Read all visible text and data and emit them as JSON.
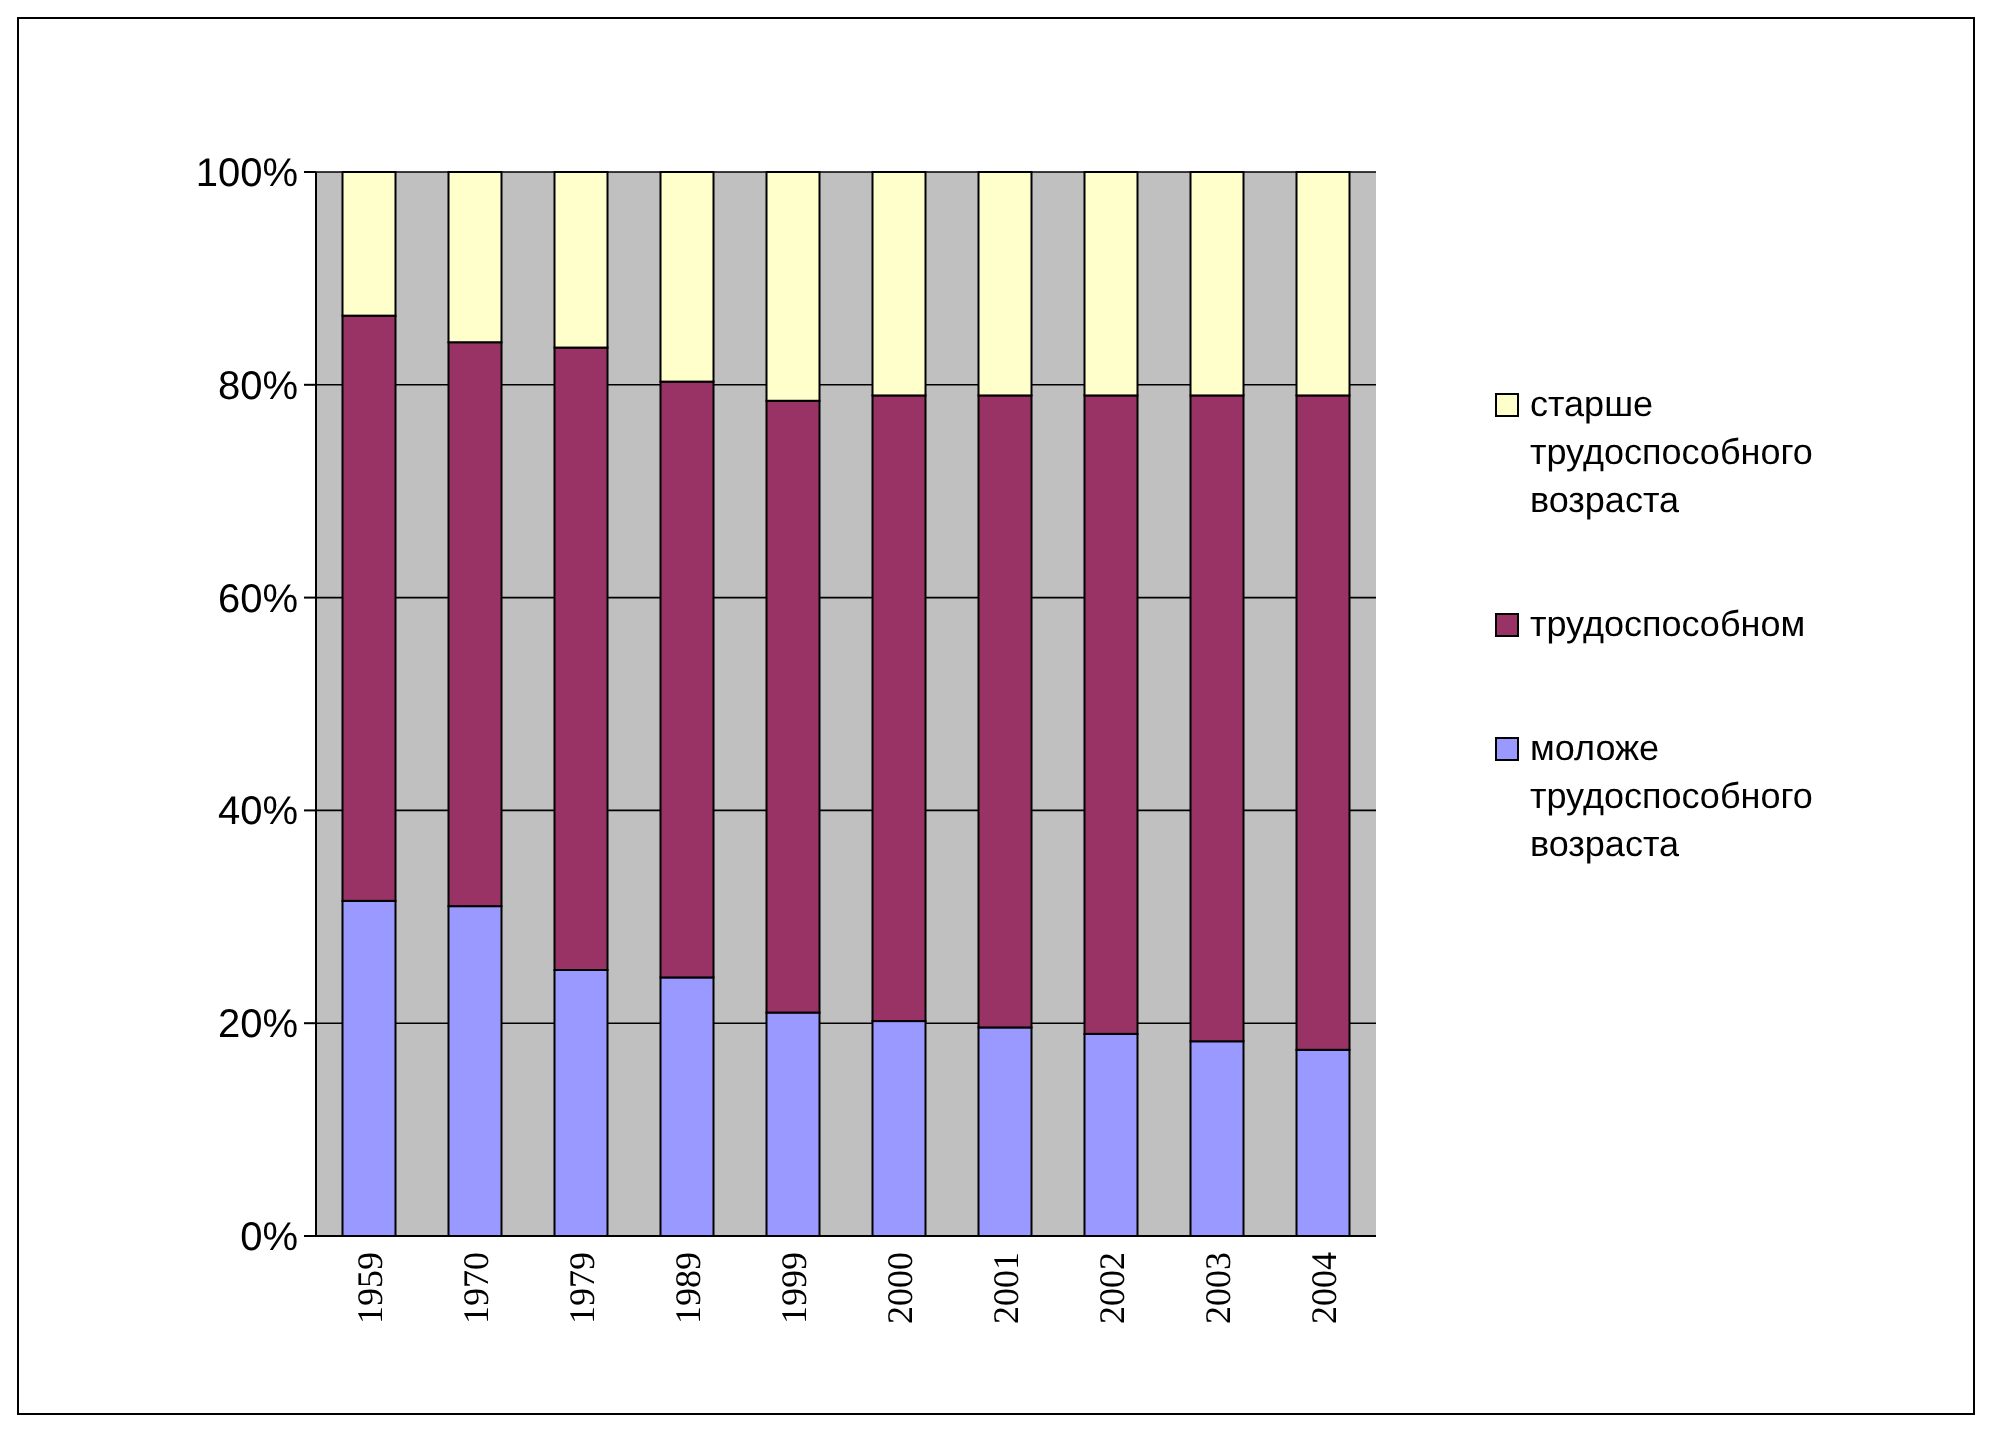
{
  "chart_data": {
    "type": "bar",
    "stacked": true,
    "categories": [
      "1959",
      "1970",
      "1979",
      "1989",
      "1999",
      "2000",
      "2001",
      "2002",
      "2003",
      "2004"
    ],
    "series": [
      {
        "name": "моложе трудоспособного возраста",
        "color": "#9999ff",
        "values": [
          31.5,
          31,
          25,
          24.3,
          21,
          20.2,
          19.6,
          19,
          18.3,
          17.5
        ]
      },
      {
        "name": "трудоспособном",
        "color": "#993366",
        "values": [
          55,
          53,
          58.5,
          56,
          57.5,
          58.8,
          59.4,
          60,
          60.7,
          61.5
        ]
      },
      {
        "name": "старше трудоспособного возраста",
        "color": "#ffffcc",
        "values": [
          13.5,
          16,
          16.5,
          19.7,
          21.5,
          21,
          21,
          21,
          21,
          21
        ]
      }
    ],
    "ylim": [
      0,
      100
    ],
    "yticks": [
      {
        "value": 0,
        "label": "0%"
      },
      {
        "value": 20,
        "label": "20%"
      },
      {
        "value": 40,
        "label": "40%"
      },
      {
        "value": 60,
        "label": "60%"
      },
      {
        "value": 80,
        "label": "80%"
      },
      {
        "value": 100,
        "label": "100%"
      }
    ],
    "grid": "y",
    "legend": "right"
  }
}
